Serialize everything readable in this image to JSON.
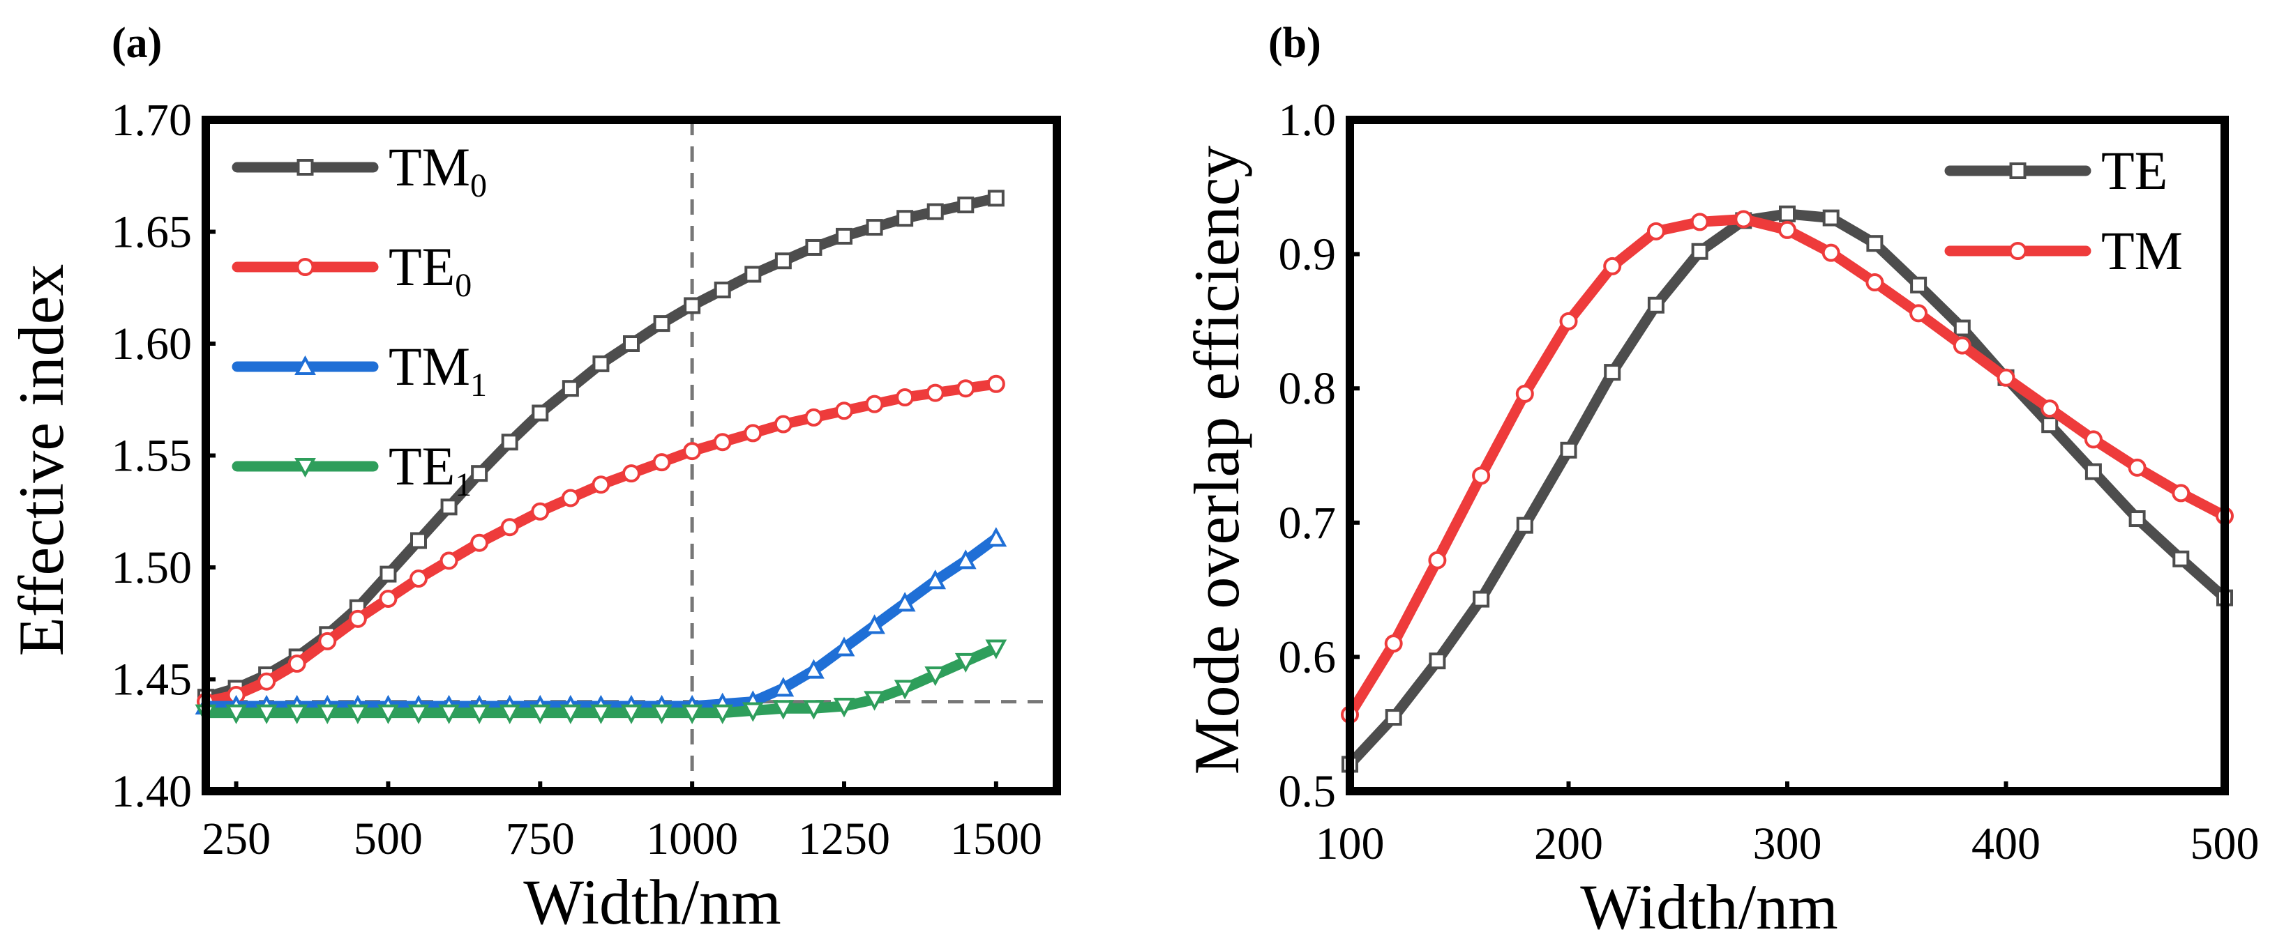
{
  "chart_data": [
    {
      "panel_label": "(a)",
      "type": "line",
      "xlabel": "Width/nm",
      "ylabel": "Effective index",
      "xlim": [
        200,
        1600
      ],
      "ylim": [
        1.4,
        1.7
      ],
      "xticks": [
        250,
        500,
        750,
        1000,
        1250,
        1500
      ],
      "yticks": [
        1.4,
        1.45,
        1.5,
        1.55,
        1.6,
        1.65,
        1.7
      ],
      "ytick_labels": [
        "1.40",
        "1.45",
        "1.50",
        "1.55",
        "1.60",
        "1.65",
        "1.70"
      ],
      "grid": false,
      "legend_position": "top-left",
      "reference_lines": [
        {
          "orientation": "vertical",
          "value": 1000,
          "style": "dashed"
        },
        {
          "orientation": "horizontal",
          "value": 1.44,
          "style": "dashed"
        }
      ],
      "x": [
        200,
        250,
        300,
        350,
        400,
        450,
        500,
        550,
        600,
        650,
        700,
        750,
        800,
        850,
        900,
        950,
        1000,
        1050,
        1100,
        1150,
        1200,
        1250,
        1300,
        1350,
        1400,
        1450,
        1500
      ],
      "series": [
        {
          "name": "TM",
          "subscript": "0",
          "color": "#4d4d4d",
          "marker": "square",
          "values": [
            1.442,
            1.446,
            1.452,
            1.46,
            1.47,
            1.482,
            1.497,
            1.512,
            1.527,
            1.542,
            1.556,
            1.569,
            1.58,
            1.591,
            1.6,
            1.609,
            1.617,
            1.624,
            1.631,
            1.637,
            1.643,
            1.648,
            1.652,
            1.656,
            1.659,
            1.662,
            1.665
          ]
        },
        {
          "name": "TE",
          "subscript": "0",
          "color": "#ee3b3b",
          "marker": "circle",
          "values": [
            1.44,
            1.443,
            1.449,
            1.457,
            1.467,
            1.477,
            1.486,
            1.495,
            1.503,
            1.511,
            1.518,
            1.525,
            1.531,
            1.537,
            1.542,
            1.547,
            1.552,
            1.556,
            1.56,
            1.564,
            1.567,
            1.57,
            1.573,
            1.576,
            1.578,
            1.58,
            1.582
          ]
        },
        {
          "name": "TM",
          "subscript": "1",
          "color": "#1f6fd6",
          "marker": "triangle-up",
          "values": [
            1.438,
            1.438,
            1.438,
            1.438,
            1.438,
            1.438,
            1.438,
            1.438,
            1.438,
            1.438,
            1.438,
            1.438,
            1.438,
            1.438,
            1.438,
            1.438,
            1.438,
            1.439,
            1.44,
            1.446,
            1.454,
            1.464,
            1.474,
            1.484,
            1.494,
            1.503,
            1.513
          ]
        },
        {
          "name": "TE",
          "subscript": "1",
          "color": "#2e9e5b",
          "marker": "triangle-down",
          "values": [
            1.435,
            1.435,
            1.435,
            1.435,
            1.435,
            1.435,
            1.435,
            1.435,
            1.435,
            1.435,
            1.435,
            1.435,
            1.435,
            1.435,
            1.435,
            1.435,
            1.435,
            1.435,
            1.436,
            1.437,
            1.437,
            1.438,
            1.441,
            1.446,
            1.452,
            1.458,
            1.464
          ]
        }
      ]
    },
    {
      "panel_label": "(b)",
      "type": "line",
      "xlabel": "Width/nm",
      "ylabel": "Mode overlap efficiency",
      "xlim": [
        100,
        500
      ],
      "ylim": [
        0.5,
        1.0
      ],
      "xticks": [
        100,
        200,
        300,
        400,
        500
      ],
      "yticks": [
        0.5,
        0.6,
        0.7,
        0.8,
        0.9,
        1.0
      ],
      "ytick_labels": [
        "0.5",
        "0.6",
        "0.7",
        "0.8",
        "0.9",
        "1.0"
      ],
      "grid": false,
      "legend_position": "top-right",
      "x": [
        100,
        120,
        140,
        160,
        180,
        200,
        220,
        240,
        260,
        280,
        300,
        320,
        340,
        360,
        380,
        400,
        420,
        440,
        460,
        480,
        500
      ],
      "series": [
        {
          "name": "TE",
          "subscript": "",
          "color": "#4d4d4d",
          "marker": "square",
          "values": [
            0.52,
            0.555,
            0.597,
            0.643,
            0.698,
            0.754,
            0.812,
            0.862,
            0.902,
            0.925,
            0.93,
            0.927,
            0.908,
            0.877,
            0.845,
            0.808,
            0.773,
            0.738,
            0.703,
            0.673,
            0.644
          ]
        },
        {
          "name": "TM",
          "subscript": "",
          "color": "#ee3b3b",
          "marker": "circle",
          "values": [
            0.557,
            0.61,
            0.672,
            0.735,
            0.796,
            0.85,
            0.891,
            0.917,
            0.924,
            0.926,
            0.918,
            0.901,
            0.879,
            0.856,
            0.832,
            0.808,
            0.785,
            0.762,
            0.741,
            0.722,
            0.705
          ]
        }
      ]
    }
  ]
}
